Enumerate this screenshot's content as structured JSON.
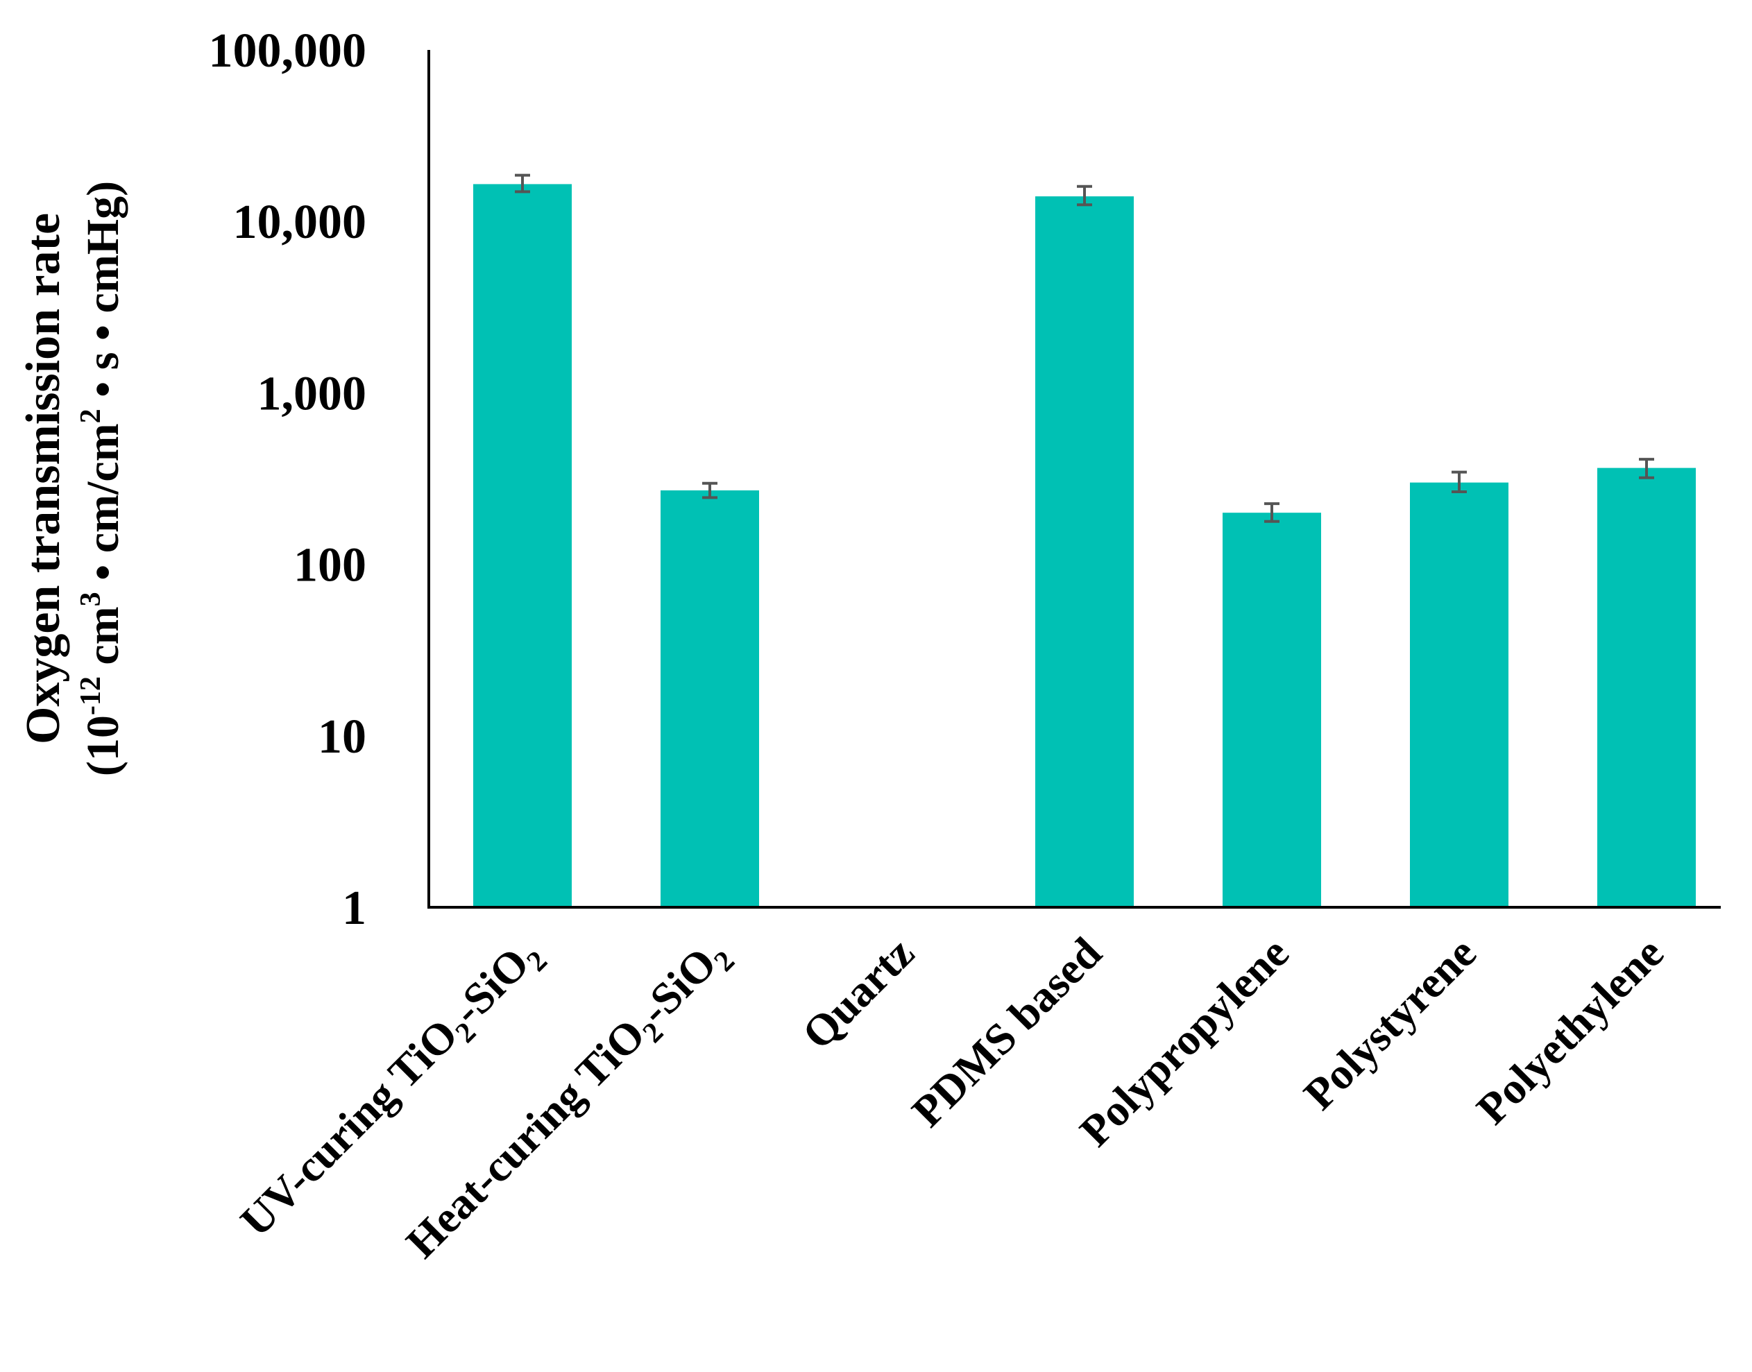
{
  "chart_data": {
    "type": "bar",
    "scale": "log",
    "ylim": [
      1,
      100000
    ],
    "yticks": [
      {
        "value": 1,
        "label": "1"
      },
      {
        "value": 10,
        "label": "10"
      },
      {
        "value": 100,
        "label": "100"
      },
      {
        "value": 1000,
        "label": "1,000"
      },
      {
        "value": 10000,
        "label": "10,000"
      },
      {
        "value": 100000,
        "label": "100,000"
      }
    ],
    "ylabel_line1": "Oxygen transmission rate",
    "ylabel_line2": {
      "open": "(10",
      "sup1": "-12",
      "mid1": " cm",
      "sup2": "3",
      "mid2": " • cm/cm",
      "sup3": "2",
      "close": " • s • cmHg)"
    },
    "categories": [
      {
        "pre": "UV-curing TiO",
        "sub1": "2",
        "mid": "-SiO",
        "sub2": "2"
      },
      {
        "pre": "Heat-curing TiO",
        "sub1": "2",
        "mid": "-SiO",
        "sub2": "2"
      },
      {
        "pre": "Quartz"
      },
      {
        "pre": "PDMS based"
      },
      {
        "pre": "Polypropylene"
      },
      {
        "pre": "Polystyrene"
      },
      {
        "pre": "Polyethylene"
      }
    ],
    "values": [
      16500,
      270,
      null,
      14000,
      200,
      300,
      365
    ],
    "errors": [
      [
        14900,
        18600
      ],
      [
        245,
        297
      ],
      null,
      [
        12500,
        16000
      ],
      [
        178,
        226
      ],
      [
        265,
        345
      ],
      [
        320,
        410
      ]
    ],
    "bar_color": "#00C1B4",
    "error_color": "#555555",
    "axis_color": "#000000",
    "grid": false,
    "legend": "none"
  }
}
